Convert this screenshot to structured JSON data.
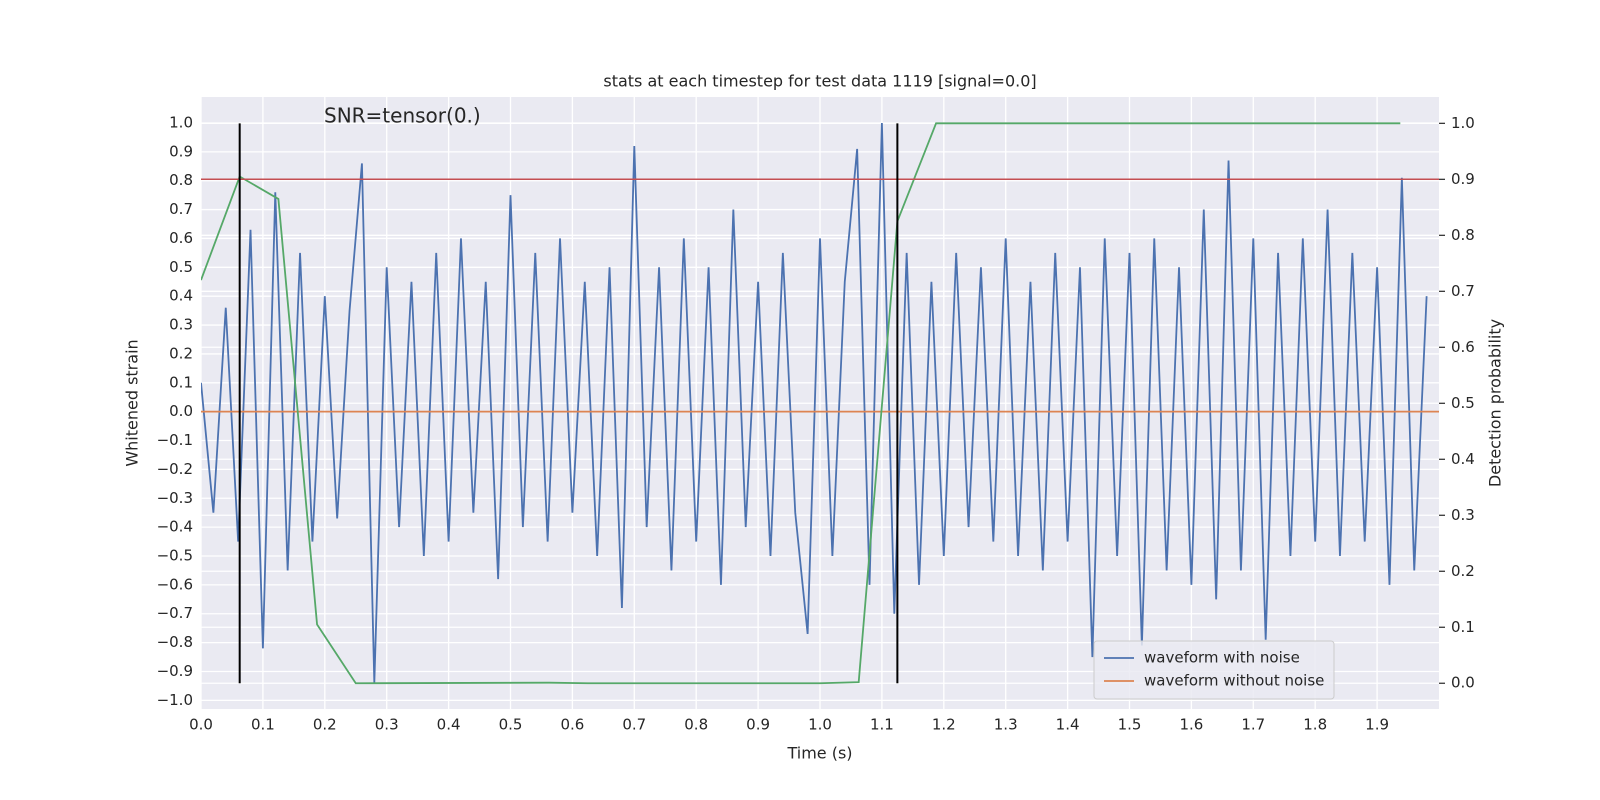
{
  "chart_data": {
    "type": "line",
    "title": "stats at each timestep for test data 1119 [signal=0.0]",
    "xlabel": "Time (s)",
    "ylabel": "Whitened strain",
    "y2label": "Detection probability",
    "annotation": "SNR=tensor(0.)",
    "grid": true,
    "legend": "lower right",
    "xlim": [
      0,
      2.0
    ],
    "ylim": [
      -1.03,
      1.09
    ],
    "y2lim": [
      -0.046,
      1.047
    ],
    "xticks": [
      {
        "value": 0,
        "label": "0.0"
      },
      {
        "value": 0.1,
        "label": "0.1"
      },
      {
        "value": 0.2,
        "label": "0.2"
      },
      {
        "value": 0.3,
        "label": "0.3"
      },
      {
        "value": 0.4,
        "label": "0.4"
      },
      {
        "value": 0.5,
        "label": "0.5"
      },
      {
        "value": 0.6,
        "label": "0.6"
      },
      {
        "value": 0.7,
        "label": "0.7"
      },
      {
        "value": 0.8,
        "label": "0.8"
      },
      {
        "value": 0.9,
        "label": "0.9"
      },
      {
        "value": 1,
        "label": "1.0"
      },
      {
        "value": 1.1,
        "label": "1.1"
      },
      {
        "value": 1.2,
        "label": "1.2"
      },
      {
        "value": 1.3,
        "label": "1.3"
      },
      {
        "value": 1.4,
        "label": "1.4"
      },
      {
        "value": 1.5,
        "label": "1.5"
      },
      {
        "value": 1.6,
        "label": "1.6"
      },
      {
        "value": 1.7,
        "label": "1.7"
      },
      {
        "value": 1.8,
        "label": "1.8"
      },
      {
        "value": 1.9,
        "label": "1.9"
      }
    ],
    "yticks": [
      {
        "value": -1,
        "label": "−1.0"
      },
      {
        "value": -0.9,
        "label": "−0.9"
      },
      {
        "value": -0.8,
        "label": "−0.8"
      },
      {
        "value": -0.7,
        "label": "−0.7"
      },
      {
        "value": -0.6,
        "label": "−0.6"
      },
      {
        "value": -0.5,
        "label": "−0.5"
      },
      {
        "value": -0.4,
        "label": "−0.4"
      },
      {
        "value": -0.3,
        "label": "−0.3"
      },
      {
        "value": -0.2,
        "label": "−0.2"
      },
      {
        "value": -0.1,
        "label": "−0.1"
      },
      {
        "value": 0,
        "label": "0.0"
      },
      {
        "value": 0.1,
        "label": "0.1"
      },
      {
        "value": 0.2,
        "label": "0.2"
      },
      {
        "value": 0.3,
        "label": "0.3"
      },
      {
        "value": 0.4,
        "label": "0.4"
      },
      {
        "value": 0.5,
        "label": "0.5"
      },
      {
        "value": 0.6,
        "label": "0.6"
      },
      {
        "value": 0.7,
        "label": "0.7"
      },
      {
        "value": 0.8,
        "label": "0.8"
      },
      {
        "value": 0.9,
        "label": "0.9"
      },
      {
        "value": 1,
        "label": "1.0"
      }
    ],
    "y2ticks": [
      {
        "value": 0,
        "label": "0.0"
      },
      {
        "value": 0.1,
        "label": "0.1"
      },
      {
        "value": 0.2,
        "label": "0.2"
      },
      {
        "value": 0.3,
        "label": "0.3"
      },
      {
        "value": 0.4,
        "label": "0.4"
      },
      {
        "value": 0.5,
        "label": "0.5"
      },
      {
        "value": 0.6,
        "label": "0.6"
      },
      {
        "value": 0.7,
        "label": "0.7"
      },
      {
        "value": 0.8,
        "label": "0.8"
      },
      {
        "value": 0.9,
        "label": "0.9"
      },
      {
        "value": 1,
        "label": "1.0"
      }
    ],
    "series": [
      {
        "name": "waveform with noise",
        "color": "#4c72b0",
        "x": [
          0,
          0.02,
          0.04,
          0.06,
          0.08,
          0.1,
          0.12,
          0.14,
          0.16,
          0.18,
          0.2,
          0.22,
          0.24,
          0.26,
          0.28,
          0.3,
          0.32,
          0.34,
          0.36,
          0.38,
          0.4,
          0.42,
          0.44,
          0.46,
          0.48,
          0.5,
          0.52,
          0.54,
          0.56,
          0.58,
          0.6,
          0.62,
          0.64,
          0.66,
          0.68,
          0.7,
          0.72,
          0.74,
          0.76,
          0.78,
          0.8,
          0.82,
          0.84,
          0.86,
          0.88,
          0.9,
          0.92,
          0.94,
          0.96,
          0.98,
          1,
          1.02,
          1.04,
          1.06,
          1.08,
          1.1,
          1.12,
          1.14,
          1.16,
          1.18,
          1.2,
          1.22,
          1.24,
          1.26,
          1.28,
          1.3,
          1.32,
          1.34,
          1.36,
          1.38,
          1.4,
          1.42,
          1.44,
          1.46,
          1.48,
          1.5,
          1.52,
          1.54,
          1.56,
          1.58,
          1.6,
          1.62,
          1.64,
          1.66,
          1.68,
          1.7,
          1.72,
          1.74,
          1.76,
          1.78,
          1.8,
          1.82,
          1.84,
          1.86,
          1.88,
          1.9,
          1.92,
          1.94,
          1.96,
          1.98
        ],
        "values": [
          0.1,
          -0.35,
          0.36,
          -0.45,
          0.63,
          -0.82,
          0.76,
          -0.55,
          0.55,
          -0.45,
          0.4,
          -0.37,
          0.35,
          0.86,
          -0.94,
          0.5,
          -0.4,
          0.45,
          -0.5,
          0.55,
          -0.45,
          0.6,
          -0.35,
          0.45,
          -0.58,
          0.75,
          -0.4,
          0.55,
          -0.45,
          0.6,
          -0.35,
          0.45,
          -0.5,
          0.5,
          -0.68,
          0.92,
          -0.4,
          0.5,
          -0.55,
          0.6,
          -0.45,
          0.5,
          -0.6,
          0.7,
          -0.4,
          0.45,
          -0.5,
          0.55,
          -0.35,
          -0.77,
          0.6,
          -0.5,
          0.45,
          0.91,
          -0.6,
          1.0,
          -0.7,
          0.55,
          -0.6,
          0.45,
          -0.5,
          0.55,
          -0.4,
          0.5,
          -0.45,
          0.6,
          -0.5,
          0.45,
          -0.55,
          0.55,
          -0.45,
          0.5,
          -0.85,
          0.6,
          -0.5,
          0.55,
          -0.81,
          0.6,
          -0.55,
          0.5,
          -0.6,
          0.7,
          -0.65,
          0.87,
          -0.55,
          0.6,
          -0.79,
          0.55,
          -0.5,
          0.6,
          -0.45,
          0.7,
          -0.5,
          0.55,
          -0.45,
          0.5,
          -0.6,
          0.81,
          -0.55,
          0.4
        ]
      },
      {
        "name": "waveform without noise",
        "color": "#dd8452",
        "x": [
          0,
          2.0
        ],
        "values": [
          0,
          0
        ]
      },
      {
        "color": "#55a868",
        "axis": "y2",
        "x": [
          0,
          0.0625,
          0.125,
          0.1875,
          0.25,
          0.5625,
          0.625,
          1.0,
          1.0625,
          1.125,
          1.1875,
          1.9375
        ],
        "values": [
          0.72,
          0.905,
          0.865,
          0.105,
          0.0,
          0.001,
          0.0,
          0.0,
          0.002,
          0.825,
          1.0,
          1.0
        ]
      }
    ],
    "hlines": [
      {
        "value": 0.9,
        "axis": "y2",
        "color": "#c44e52"
      }
    ],
    "vlines": {
      "values": [
        0.0625,
        1.125
      ],
      "ymin": 0,
      "ymax": 1,
      "axis": "y2",
      "color": "#000000"
    }
  }
}
